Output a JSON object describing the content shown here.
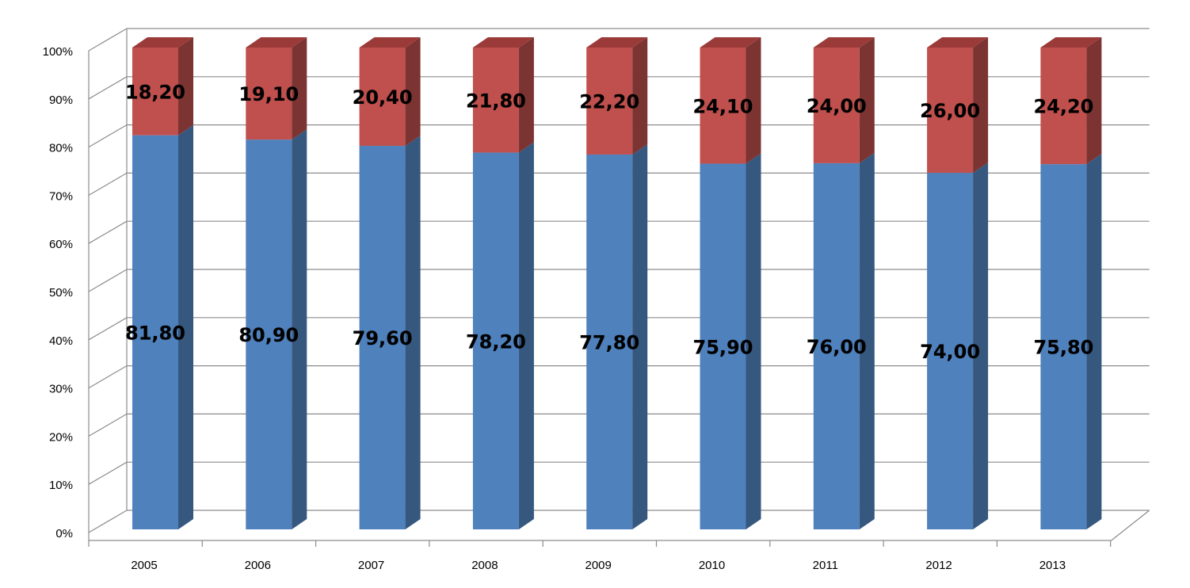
{
  "chart_data": {
    "type": "bar",
    "stacked": true,
    "percent_stacked": true,
    "three_d": true,
    "categories": [
      "2005",
      "2006",
      "2007",
      "2008",
      "2009",
      "2010",
      "2011",
      "2012",
      "2013"
    ],
    "series": [
      {
        "values": [
          81.8,
          80.9,
          79.6,
          78.2,
          77.8,
          75.9,
          76.0,
          74.0,
          75.8
        ],
        "labels": [
          "81,80",
          "80,90",
          "79,60",
          "78,20",
          "77,80",
          "75,90",
          "76,00",
          "74,00",
          "75,80"
        ],
        "color": "#4f81bd",
        "side_color": "#36587f",
        "top_color": "#6f94c8"
      },
      {
        "values": [
          18.2,
          19.1,
          20.4,
          21.8,
          22.2,
          24.1,
          24.0,
          26.0,
          24.2
        ],
        "labels": [
          "18,20",
          "19,10",
          "20,40",
          "21,80",
          "22,20",
          "24,10",
          "24,00",
          "26,00",
          "24,20"
        ],
        "color": "#c0504d",
        "side_color": "#7c3432",
        "top_color": "#9b3b39"
      }
    ],
    "y_ticks": [
      "0%",
      "10%",
      "20%",
      "30%",
      "40%",
      "50%",
      "60%",
      "70%",
      "80%",
      "90%",
      "100%"
    ],
    "ylim": [
      0,
      100
    ],
    "grid": true,
    "legend": "none"
  }
}
